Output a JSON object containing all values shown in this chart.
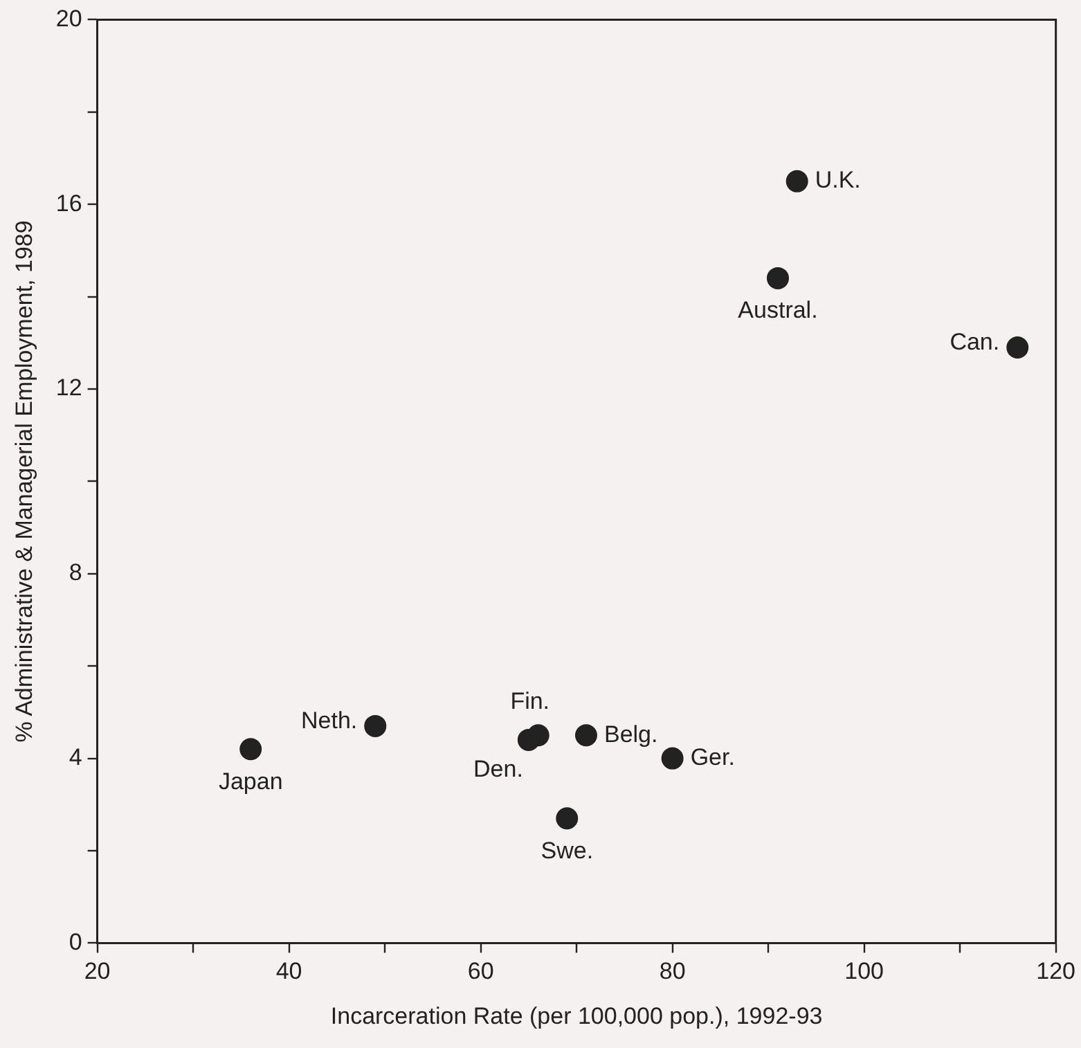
{
  "chart_data": {
    "type": "scatter",
    "xlabel": "Incarceration Rate (per 100,000 pop.), 1992-93",
    "ylabel": "% Administrative & Managerial Employment, 1989",
    "x": [
      36,
      49,
      65,
      66,
      71,
      80,
      69,
      91,
      93,
      116
    ],
    "series": [
      {
        "color": "#222222",
        "values": [
          4.2,
          4.7,
          4.4,
          4.5,
          4.5,
          4.0,
          2.7,
          14.4,
          16.5,
          12.9
        ]
      }
    ],
    "marker": "circle",
    "grid": false,
    "legend": false,
    "xlim": [
      20,
      120
    ],
    "xticks": [
      20,
      {
        "value": 30,
        "label": null
      },
      40,
      {
        "value": 50,
        "label": null
      },
      60,
      {
        "value": 70,
        "label": null
      },
      80,
      {
        "value": 90,
        "label": null
      },
      100,
      {
        "value": 110,
        "label": null
      },
      120
    ],
    "ylim": [
      0,
      20
    ],
    "yticks": [
      0,
      {
        "value": 2,
        "label": null
      },
      4,
      {
        "value": 6,
        "label": null
      },
      8,
      {
        "value": 10,
        "label": null
      },
      12,
      {
        "value": 14,
        "label": null
      },
      16,
      {
        "value": 18,
        "label": null
      },
      20
    ],
    "annotations": [
      {
        "text": "Japan",
        "x": 36,
        "y": 4.2
      },
      {
        "text": "Neth.",
        "x": 49,
        "y": 4.7
      },
      {
        "text": "Den.",
        "x": 65,
        "y": 4.4
      },
      {
        "text": "Fin.",
        "x": 66,
        "y": 4.5
      },
      {
        "text": "Belg.",
        "x": 71,
        "y": 4.5
      },
      {
        "text": "Ger.",
        "x": 80,
        "y": 4.0
      },
      {
        "text": "Swe.",
        "x": 69,
        "y": 2.7
      },
      {
        "text": "Austral.",
        "x": 91,
        "y": 14.4
      },
      {
        "text": "U.K.",
        "x": 93,
        "y": 16.5
      },
      {
        "text": "Can.",
        "x": 116,
        "y": 12.9
      }
    ]
  }
}
